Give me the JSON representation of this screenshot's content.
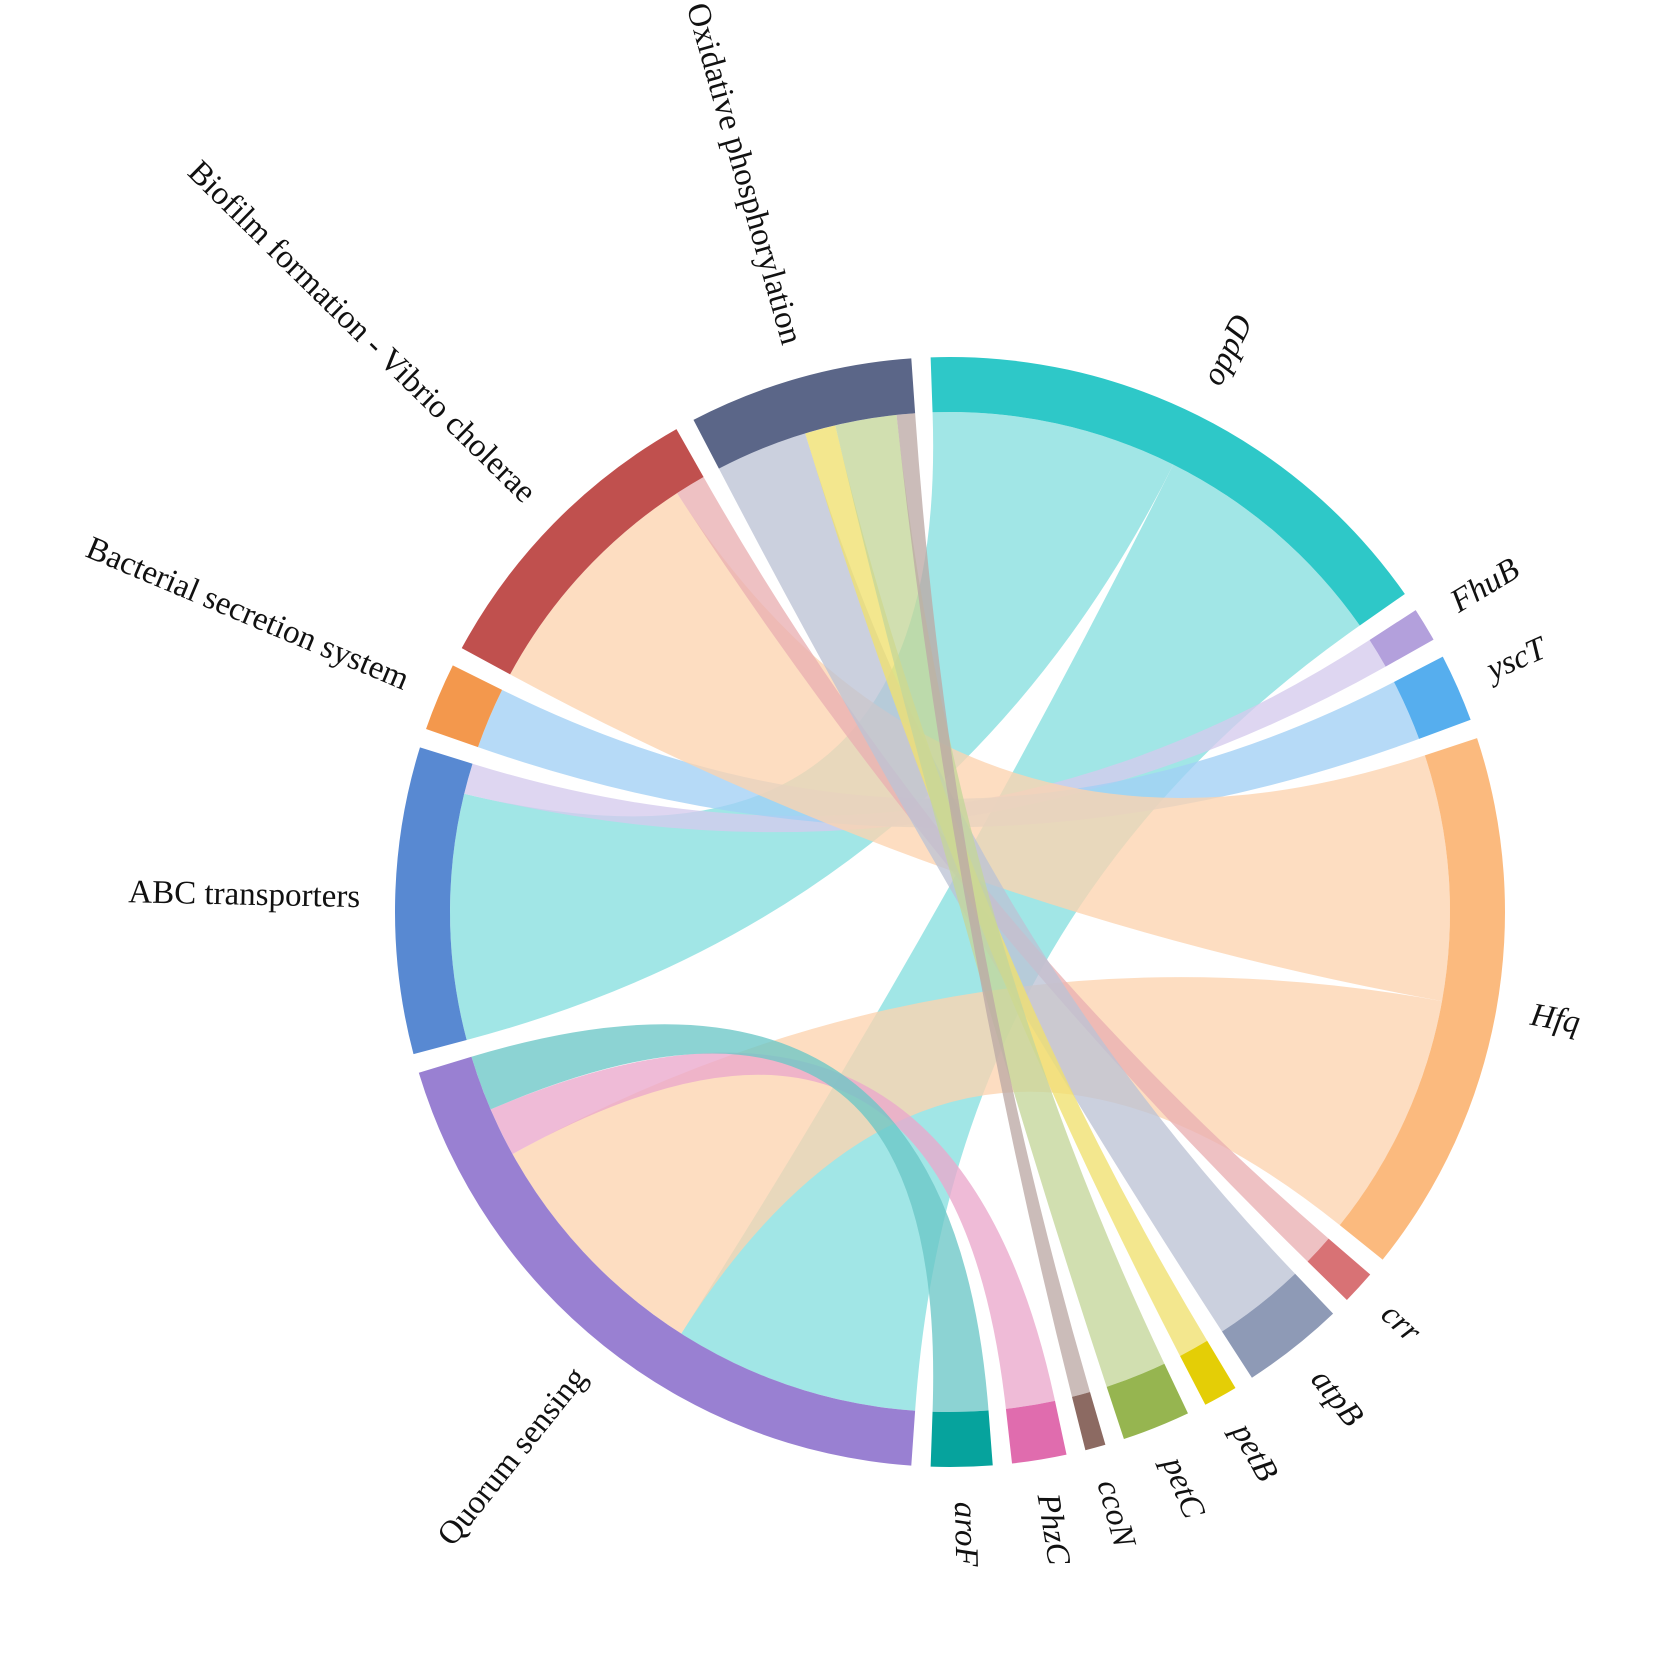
{
  "chart_data": {
    "type": "chord",
    "gap_deg": 2.0,
    "segments": [
      {
        "id": "oppD",
        "label": "oppD",
        "italic": true,
        "color": "#2ec8c8",
        "ribbon_color": "#86dfdf"
      },
      {
        "id": "FhuB",
        "label": "FhuB",
        "italic": true,
        "color": "#b3a0dc",
        "ribbon_color": "#d5cbed"
      },
      {
        "id": "yscT",
        "label": "yscT",
        "italic": true,
        "color": "#56aeee",
        "ribbon_color": "#a2d0f5"
      },
      {
        "id": "Hfq",
        "label": "Hfq",
        "italic": true,
        "color": "#fbba7e",
        "ribbon_color": "#fdd4b0"
      },
      {
        "id": "crr",
        "label": "crr",
        "italic": true,
        "color": "#d87275",
        "ribbon_color": "#e9b0b2"
      },
      {
        "id": "atpB",
        "label": "atpB",
        "italic": true,
        "color": "#8e9ab6",
        "ribbon_color": "#bcc3d5"
      },
      {
        "id": "petB",
        "label": "petB",
        "italic": true,
        "color": "#e4ce06",
        "ribbon_color": "#efe06e"
      },
      {
        "id": "petC",
        "label": "petC",
        "italic": true,
        "color": "#96b550",
        "ribbon_color": "#c4d69a"
      },
      {
        "id": "ccoN",
        "label": "ccoN",
        "italic": true,
        "color": "#8c6a62",
        "ribbon_color": "#bca9a5"
      },
      {
        "id": "PhzC",
        "label": "PhzC",
        "italic": true,
        "color": "#e06cae",
        "ribbon_color": "#eaa8cc"
      },
      {
        "id": "aroF",
        "label": "aroF",
        "italic": true,
        "color": "#06a39d",
        "ribbon_color": "#6cc7c6"
      },
      {
        "id": "QS",
        "label": "Quorum sensing",
        "italic": false,
        "color": "#9980d2",
        "ribbon_color": "#c4b5e6"
      },
      {
        "id": "ABC",
        "label": "ABC transporters",
        "italic": false,
        "color": "#5889d2",
        "ribbon_color": "#a4bfe8"
      },
      {
        "id": "BSS",
        "label": "Bacterial secretion system",
        "italic": false,
        "color": "#f3984d",
        "ribbon_color": "#f8c69c"
      },
      {
        "id": "BFV",
        "label": "Biofilm formation - Vibrio cholerae",
        "italic": false,
        "color": "#c0504e",
        "ribbon_color": "#dd9c9b"
      },
      {
        "id": "OXP",
        "label": "Oxidative phosphorylation",
        "italic": false,
        "color": "#5b6688",
        "ribbon_color": "#a3aac0"
      }
    ],
    "links": [
      {
        "source": "oppD",
        "target": "ABC",
        "value": 2
      },
      {
        "source": "oppD",
        "target": "QS",
        "value": 2
      },
      {
        "source": "FhuB",
        "target": "ABC",
        "value": 0.25
      },
      {
        "source": "yscT",
        "target": "BSS",
        "value": 0.5
      },
      {
        "source": "Hfq",
        "target": "BFV",
        "value": 2
      },
      {
        "source": "Hfq",
        "target": "QS",
        "value": 2
      },
      {
        "source": "crr",
        "target": "BFV",
        "value": 0.25
      },
      {
        "source": "atpB",
        "target": "OXP",
        "value": 0.75
      },
      {
        "source": "petB",
        "target": "OXP",
        "value": 0.25
      },
      {
        "source": "petC",
        "target": "OXP",
        "value": 0.5
      },
      {
        "source": "ccoN",
        "target": "OXP",
        "value": 0.15
      },
      {
        "source": "PhzC",
        "target": "QS",
        "value": 0.4
      },
      {
        "source": "aroF",
        "target": "QS",
        "value": 0.45
      }
    ]
  }
}
